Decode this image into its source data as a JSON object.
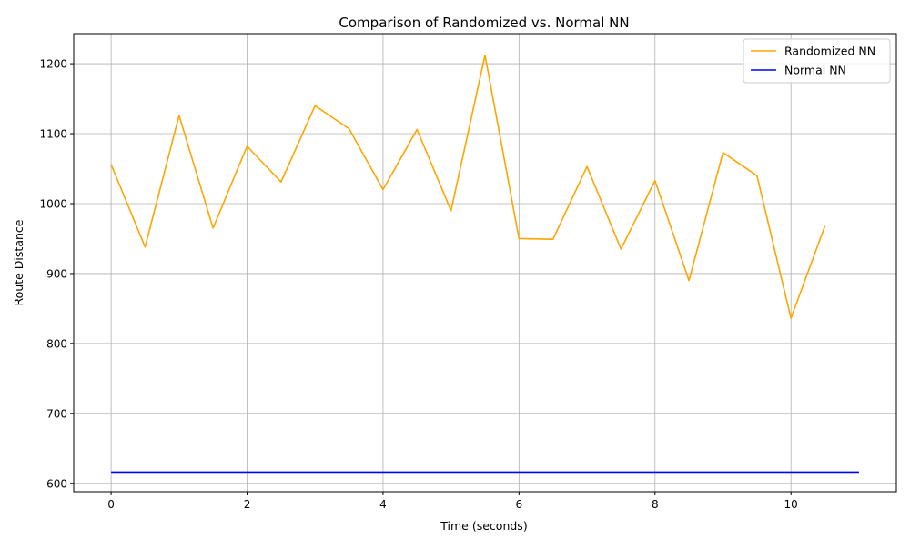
{
  "chart_data": {
    "type": "line",
    "title": "Comparison of Randomized vs. Normal NN",
    "xlabel": "Time (seconds)",
    "ylabel": "Route Distance",
    "xlim": [
      -0.55,
      11.55
    ],
    "ylim": [
      588,
      1243
    ],
    "xticks": [
      0,
      2,
      4,
      6,
      8,
      10
    ],
    "yticks": [
      600,
      700,
      800,
      900,
      1000,
      1100,
      1200
    ],
    "grid": true,
    "legend_position": "top-right",
    "series": [
      {
        "name": "Randomized NN",
        "color": "#ffa500",
        "x": [
          0,
          0.5,
          1.0,
          1.5,
          2.0,
          2.5,
          3.0,
          3.5,
          4.0,
          4.5,
          5.0,
          5.5,
          6.0,
          6.5,
          7.0,
          7.5,
          8.0,
          8.5,
          9.0,
          9.5,
          10.0,
          10.5
        ],
        "y": [
          1056,
          938,
          1126,
          965,
          1082,
          1031,
          1140,
          1107,
          1020,
          1106,
          990,
          1212,
          950,
          949,
          1053,
          935,
          1033,
          890,
          1073,
          1040,
          836,
          968
        ]
      },
      {
        "name": "Normal NN",
        "color": "#0000ff",
        "x": [
          0,
          11.0
        ],
        "y": [
          616,
          616
        ]
      }
    ]
  }
}
